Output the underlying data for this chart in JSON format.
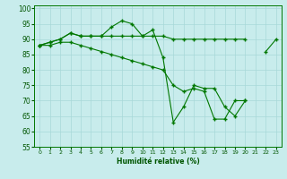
{
  "xlabel": "Humidité relative (%)",
  "ylim": [
    55,
    101
  ],
  "xlim": [
    -0.5,
    23.5
  ],
  "yticks": [
    55,
    60,
    65,
    70,
    75,
    80,
    85,
    90,
    95,
    100
  ],
  "xticks": [
    0,
    1,
    2,
    3,
    4,
    5,
    6,
    7,
    8,
    9,
    10,
    11,
    12,
    13,
    14,
    15,
    16,
    17,
    18,
    19,
    20,
    21,
    22,
    23
  ],
  "background_color": "#c8ecec",
  "line_color": "#007700",
  "line1": [
    88,
    89,
    90,
    92,
    91,
    91,
    91,
    94,
    96,
    95,
    91,
    93,
    84,
    63,
    68,
    75,
    74,
    74,
    68,
    65,
    70,
    null,
    86,
    90
  ],
  "line2": [
    88,
    89,
    90,
    92,
    91,
    91,
    91,
    91,
    91,
    91,
    91,
    91,
    91,
    90,
    90,
    90,
    90,
    90,
    90,
    90,
    90,
    null,
    null,
    null
  ],
  "line3": [
    88,
    88,
    89,
    89,
    88,
    87,
    86,
    85,
    84,
    83,
    82,
    81,
    80,
    75,
    73,
    74,
    73,
    64,
    64,
    70,
    70,
    null,
    null,
    null
  ]
}
